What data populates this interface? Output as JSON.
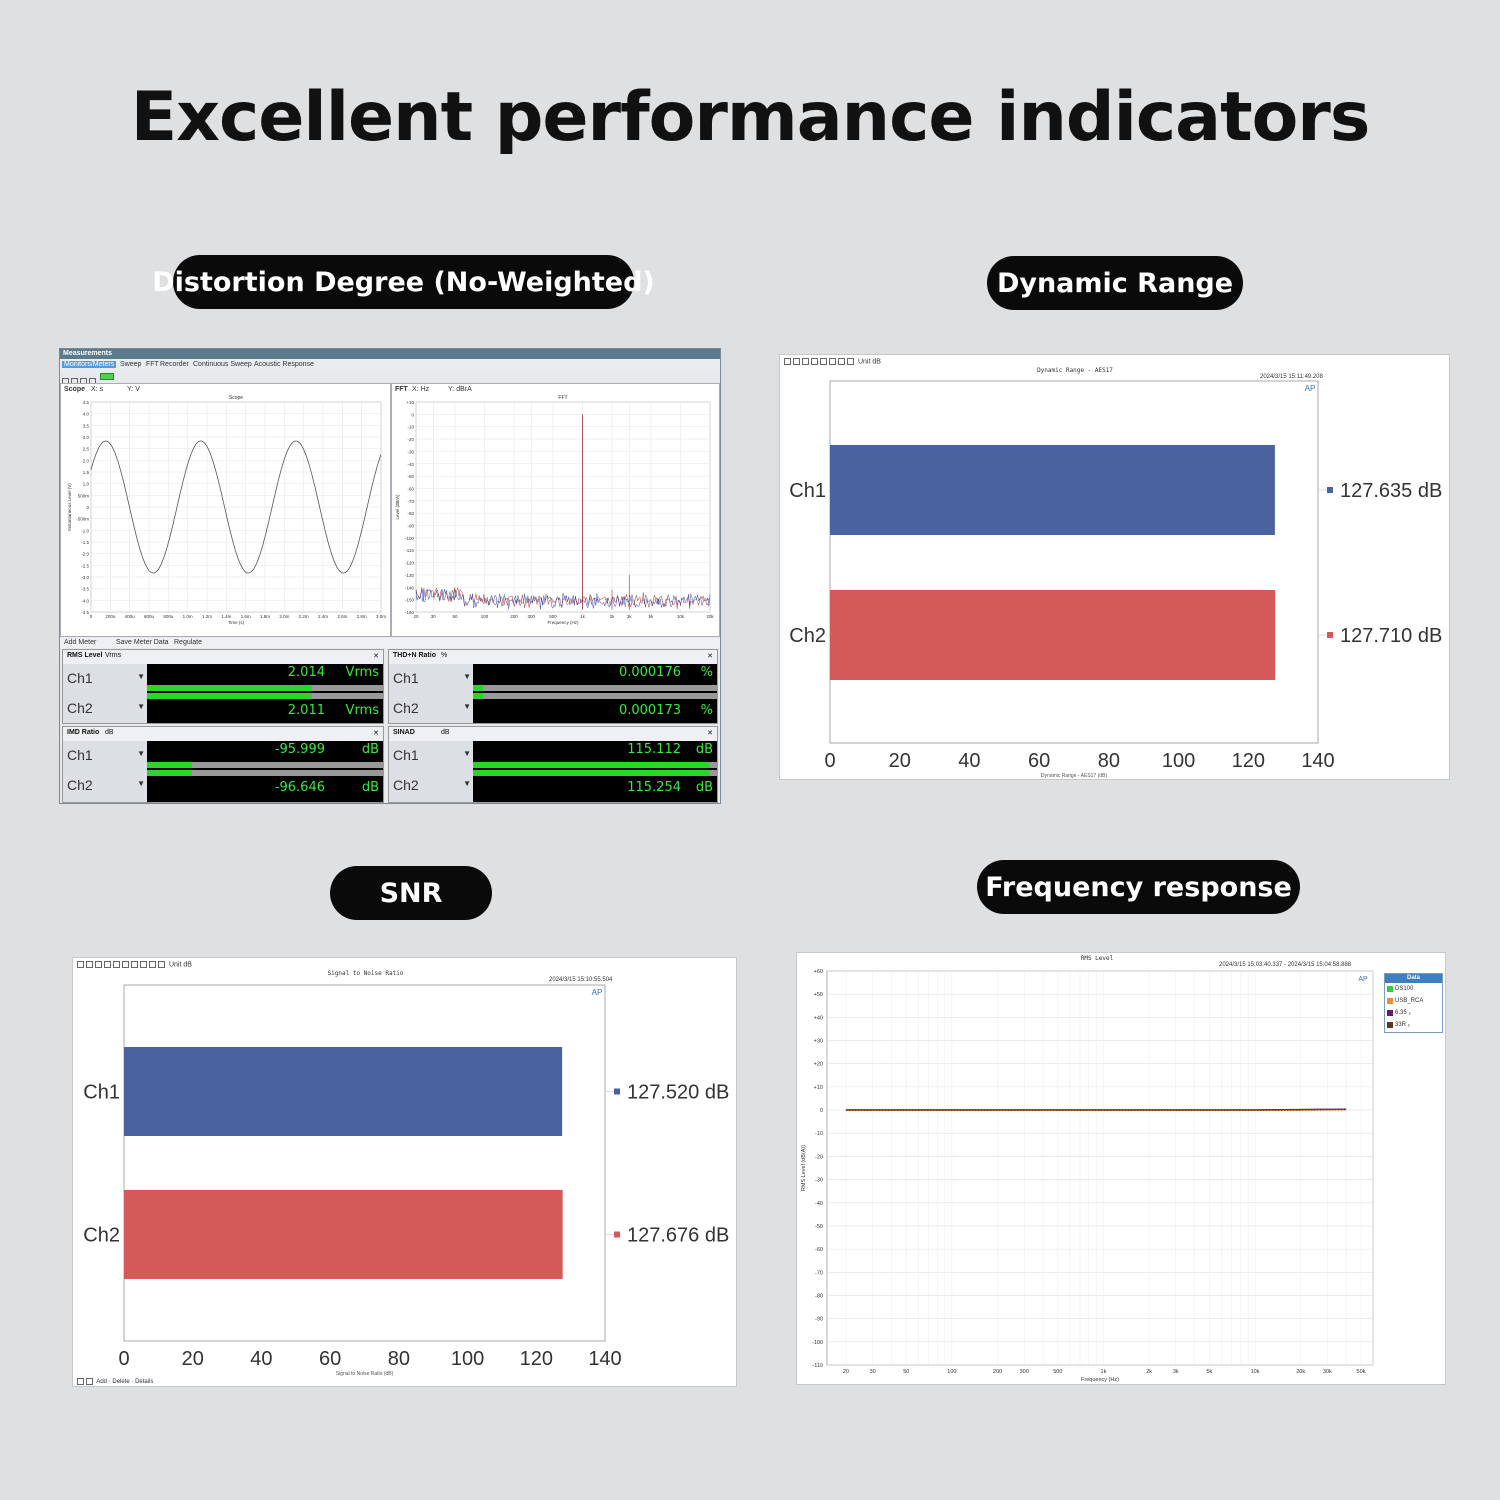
{
  "page_title": "Excellent performance indicators",
  "labels": {
    "distortion": "Distortion Degree (No-Weighted)",
    "dynamic_range": "Dynamic Range",
    "snr": "SNR",
    "frequency_response": "Frequency response"
  },
  "measurements": {
    "window_title": "Measurements",
    "tabs": [
      "Monitors/Meters",
      "Sweep",
      "FFT",
      "Recorder",
      "Continuous Sweep",
      "Acoustic Response"
    ],
    "scope": {
      "label": "Scope",
      "x_unit": "s",
      "y_unit": "V",
      "plot_title": "Scope",
      "ylabel": "Instantaneous Level (V)",
      "xlabel": "Time (s)",
      "yticks": [
        "4.5",
        "4.0",
        "3.5",
        "3.0",
        "2.5",
        "2.0",
        "1.5",
        "1.0",
        "500m",
        "0",
        "-500m",
        "-1.0",
        "-1.5",
        "-2.0",
        "-2.5",
        "-3.0",
        "-3.5",
        "-4.0",
        "-4.5"
      ],
      "xticks": [
        "0",
        "200u",
        "400u",
        "600u",
        "800u",
        "1.0m",
        "1.2m",
        "1.4m",
        "1.6m",
        "1.8m",
        "2.0m",
        "2.2m",
        "2.4m",
        "2.6m",
        "2.8m",
        "3.0m"
      ]
    },
    "fft": {
      "label": "FFT",
      "x_unit": "Hz",
      "y_unit": "dBrA",
      "plot_title": "FFT",
      "ylabel": "Level (dBrA)",
      "xlabel": "Frequency (Hz)",
      "yticks": [
        "+10",
        "0",
        "-10",
        "-20",
        "-30",
        "-40",
        "-50",
        "-60",
        "-70",
        "-80",
        "-90",
        "-100",
        "-110",
        "-120",
        "-130",
        "-140",
        "-150",
        "-160"
      ],
      "xticks": [
        "20",
        "30",
        "50",
        "100",
        "200",
        "300",
        "500",
        "1k",
        "2k",
        "3k",
        "5k",
        "10k",
        "20k"
      ]
    },
    "meter_toolbar": [
      "Add Meter",
      "Save Meter Data",
      "Regulate"
    ],
    "meters": [
      {
        "title": "RMS Level",
        "unit_select": "Vrms",
        "ch1_label": "Ch1",
        "ch2_label": "Ch2",
        "ch1_value": "2.014",
        "ch2_value": "2.011",
        "unit": "Vrms",
        "ch1_fill": 0.7,
        "ch2_fill": 0.7
      },
      {
        "title": "THD+N Ratio",
        "unit_select": "%",
        "ch1_label": "Ch1",
        "ch2_label": "Ch2",
        "ch1_value": "0.000176",
        "ch2_value": "0.000173",
        "unit": "%",
        "ch1_fill": 0.04,
        "ch2_fill": 0.04
      },
      {
        "title": "IMD Ratio",
        "unit_select": "dB",
        "ch1_label": "Ch1",
        "ch2_label": "Ch2",
        "ch1_value": "-95.999",
        "ch2_value": "-96.646",
        "unit": "dB",
        "ch1_fill": 0.19,
        "ch2_fill": 0.19
      },
      {
        "title": "SINAD",
        "unit_select": "dB",
        "ch1_label": "Ch1",
        "ch2_label": "Ch2",
        "ch1_value": "115.112",
        "ch2_value": "115.254",
        "unit": "dB",
        "ch1_fill": 0.97,
        "ch2_fill": 0.97
      }
    ]
  },
  "dynamic_range_panel": {
    "toolbar_unit_label": "Unit",
    "toolbar_unit": "dB",
    "plot_title": "Dynamic Range - AES17",
    "timestamp": "2024/3/15 15:11:49.208",
    "xlabel": "Dynamic Range - AES17 (dB)"
  },
  "snr_panel": {
    "toolbar_unit_label": "Unit",
    "toolbar_unit": "dB",
    "plot_title": "Signal to Noise Ratio",
    "timestamp": "2024/3/15 15:10:55.504",
    "xlabel": "Signal to Noise Ratio (dB)",
    "bottom_toolbar": [
      "Add",
      "Delete",
      "Details"
    ]
  },
  "freq_panel": {
    "plot_title": "RMS Level",
    "timestamp": "2024/3/15 15:03:40.337 -    2024/3/15 15:04:58.888",
    "legend_title": "Data",
    "ylabel": "RMS Level (dB(A))",
    "xlabel": "Frequency (Hz)"
  },
  "chart_data": [
    {
      "type": "bar",
      "orientation": "horizontal",
      "title": "Dynamic Range - AES17",
      "xlabel": "Dynamic Range - AES17 (dB)",
      "categories": [
        "Ch1",
        "Ch2"
      ],
      "values": [
        127.635,
        127.71
      ],
      "value_labels": [
        "127.635 dB",
        "127.710 dB"
      ],
      "colors": [
        "#4a62a0",
        "#d35a58"
      ],
      "xlim": [
        0,
        140
      ],
      "xticks": [
        "0",
        "20",
        "40",
        "60",
        "80",
        "100",
        "120",
        "140"
      ]
    },
    {
      "type": "bar",
      "orientation": "horizontal",
      "title": "Signal to Noise Ratio",
      "xlabel": "Signal to Noise Ratio (dB)",
      "categories": [
        "Ch1",
        "Ch2"
      ],
      "values": [
        127.52,
        127.676
      ],
      "value_labels": [
        "127.520 dB",
        "127.676 dB"
      ],
      "colors": [
        "#4a62a0",
        "#d35a58"
      ],
      "xlim": [
        0,
        140
      ],
      "xticks": [
        "0",
        "20",
        "40",
        "60",
        "80",
        "100",
        "120",
        "140"
      ]
    },
    {
      "type": "line",
      "title": "RMS Level",
      "xlabel": "Frequency (Hz)",
      "ylabel": "RMS Level (dB(A))",
      "x_scale": "log",
      "xticks": [
        "20",
        "30",
        "50",
        "100",
        "200",
        "300",
        "500",
        "1k",
        "2k",
        "3k",
        "5k",
        "10k",
        "20k",
        "30k",
        "50k"
      ],
      "yticks": [
        "+60",
        "+50",
        "+40",
        "+30",
        "+20",
        "+10",
        "0",
        "-10",
        "-20",
        "-30",
        "-40",
        "-50",
        "-60",
        "-70",
        "-80",
        "-90",
        "-100",
        "-110"
      ],
      "ylim": [
        -110,
        60
      ],
      "xlim": [
        20,
        50000
      ],
      "series": [
        {
          "name": "DS100",
          "color": "#2ecc40",
          "x": [
            20,
            100,
            1000,
            10000,
            20000,
            40000
          ],
          "y": [
            0,
            0,
            0,
            0,
            0.1,
            0.3
          ]
        },
        {
          "name": "USB_RCA",
          "color": "#f08a3a",
          "x": [
            20,
            100,
            1000,
            10000,
            20000,
            40000
          ],
          "y": [
            0,
            0,
            0,
            0,
            0.1,
            0.3
          ]
        },
        {
          "name": "6.35 ₂",
          "color": "#6a1a6a",
          "x": [
            20,
            100,
            1000,
            10000,
            20000,
            40000
          ],
          "y": [
            0,
            0,
            0,
            0,
            0.1,
            0.3
          ]
        },
        {
          "name": "33R ₂",
          "color": "#5a3a1a",
          "x": [
            20,
            100,
            1000,
            10000,
            20000,
            40000
          ],
          "y": [
            0,
            0,
            0,
            0,
            0.1,
            0.3
          ]
        }
      ]
    }
  ]
}
